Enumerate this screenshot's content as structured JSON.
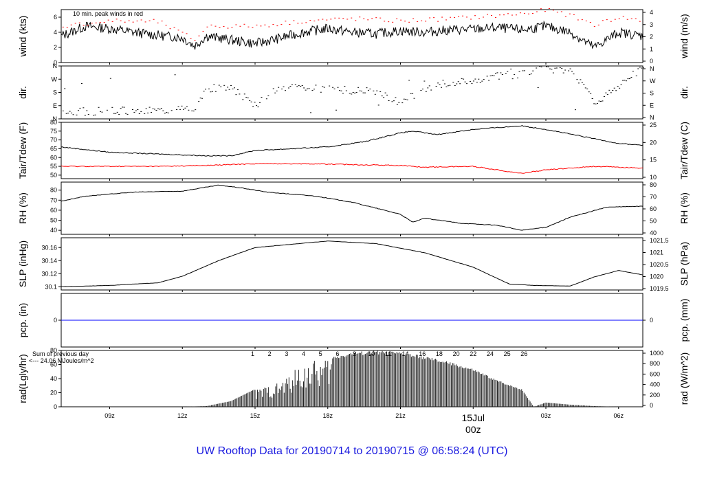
{
  "footer_title": "UW Rooftop Data for 20190714  to  20190715 @ 06:58:24  (UTC)",
  "colors": {
    "axis": "#000000",
    "red": "#ff0000",
    "blue": "#0000ff",
    "purple": "#a020f0",
    "footer": "#1a1adf",
    "date": "#cc0000"
  },
  "x_axis": {
    "ticks": [
      {
        "hour": 9,
        "label": "09z"
      },
      {
        "hour": 12,
        "label": "12z"
      },
      {
        "hour": 15,
        "label": "15z"
      },
      {
        "hour": 18,
        "label": "18z"
      },
      {
        "hour": 21,
        "label": "21z"
      },
      {
        "hour": 24,
        "label": ""
      },
      {
        "hour": 27,
        "label": "03z"
      },
      {
        "hour": 30,
        "label": "06z"
      }
    ],
    "date_label": "15Jul",
    "date_sublabel": "00z",
    "range_hours": [
      7.0,
      31.0
    ]
  },
  "chart_data": [
    {
      "type": "line",
      "ylabel": "wind (kts)",
      "ylabel_right": "wind (m/s)",
      "annotation": "10 min. peak winds in red",
      "ylim": [
        0,
        7
      ],
      "yticks": [
        0,
        2,
        4,
        6
      ],
      "yticks_right": [
        "0",
        "1",
        "2",
        "3",
        "4"
      ],
      "right_scale_factor": 1.944,
      "series": [
        {
          "color": "#000000",
          "x": [
            7.0,
            8.0,
            9.0,
            10.0,
            11.0,
            12.0,
            12.5,
            13.0,
            14.0,
            15.0,
            16.0,
            17.0,
            18.0,
            19.0,
            20.0,
            21.0,
            22.0,
            23.0,
            24.0,
            25.0,
            26.0,
            27.0,
            28.0,
            29.0,
            30.0,
            31.0
          ],
          "y": [
            3.5,
            4.8,
            4.5,
            4.0,
            3.6,
            3.3,
            2.2,
            3.5,
            3.0,
            2.5,
            3.2,
            4.0,
            4.5,
            4.0,
            3.8,
            4.2,
            4.0,
            4.3,
            4.4,
            4.6,
            4.3,
            4.8,
            4.0,
            2.0,
            4.0,
            3.5
          ]
        },
        {
          "color": "#ff0000",
          "x": [
            7.0,
            9.0,
            11.0,
            12.5,
            13.0,
            15.0,
            17.0,
            19.0,
            21.0,
            23.0,
            25.0,
            26.5,
            27.0,
            28.0,
            29.0,
            30.0,
            31.0
          ],
          "y": [
            4.8,
            5.5,
            5.4,
            3.0,
            4.8,
            4.8,
            5.5,
            5.8,
            5.5,
            5.8,
            6.2,
            6.6,
            7.0,
            6.2,
            5.0,
            6.0,
            5.5
          ]
        }
      ]
    },
    {
      "type": "scatter",
      "ylabel": "dir.",
      "ylabel_right": "dir.",
      "ylim": [
        0,
        360
      ],
      "ytick_labels": [
        "N",
        "E",
        "S",
        "W",
        "N"
      ],
      "yticks": [
        0,
        90,
        180,
        270,
        360
      ],
      "series": [
        {
          "color": "#000000",
          "x": [
            7.0,
            9.0,
            11.0,
            12.5,
            13.0,
            14.0,
            15.0,
            16.0,
            18.0,
            20.0,
            21.0,
            22.0,
            23.0,
            24.0,
            25.0,
            26.0,
            27.0,
            28.0,
            29.0,
            31.0
          ],
          "y": [
            45,
            55,
            60,
            75,
            210,
            215,
            95,
            210,
            205,
            185,
            110,
            210,
            250,
            265,
            290,
            305,
            340,
            330,
            110,
            355
          ]
        }
      ]
    },
    {
      "type": "line",
      "ylabel": "Tair/Tdew (F)",
      "ylabel_right": "Tair/Tdew (C)",
      "ylim": [
        48,
        80
      ],
      "yticks": [
        50,
        55,
        60,
        65,
        70,
        75,
        80
      ],
      "yticks_right": [
        "10",
        "15",
        "20",
        "25"
      ],
      "series": [
        {
          "name": "Tair",
          "color": "#000000",
          "x": [
            7.0,
            9.0,
            11.0,
            13.0,
            14.0,
            15.0,
            16.5,
            18.0,
            19.5,
            21.0,
            21.5,
            22.5,
            24.0,
            25.0,
            26.0,
            27.0,
            28.5,
            30.0,
            31.0
          ],
          "y": [
            66,
            63,
            62,
            61,
            61,
            64,
            65,
            66,
            69,
            74,
            75,
            73,
            76,
            77,
            78,
            76,
            72,
            68,
            67
          ]
        },
        {
          "name": "Tdew",
          "color": "#ff0000",
          "x": [
            7.0,
            9.0,
            11.0,
            13.0,
            15.0,
            17.0,
            19.0,
            21.0,
            22.0,
            24.0,
            25.5,
            26.0,
            27.0,
            29.0,
            31.0
          ],
          "y": [
            55,
            55,
            55,
            55.5,
            56.5,
            56.5,
            56,
            55.5,
            54.5,
            55,
            52,
            51,
            53,
            55,
            54
          ]
        }
      ]
    },
    {
      "type": "line",
      "ylabel": "RH (%)",
      "ylabel_right": "RH (%)",
      "ylim": [
        36,
        88
      ],
      "yticks": [
        40,
        50,
        60,
        70,
        80
      ],
      "series": [
        {
          "color": "#000000",
          "x": [
            7.0,
            8.0,
            10.0,
            12.0,
            13.5,
            14.5,
            15.5,
            17.5,
            19.0,
            21.0,
            21.5,
            22.0,
            23.5,
            25.0,
            26.0,
            27.0,
            28.0,
            29.5,
            31.0
          ],
          "y": [
            69,
            74,
            78,
            79,
            85,
            82,
            78,
            74,
            68,
            56,
            48,
            52,
            47,
            45,
            40,
            43,
            53,
            63,
            64
          ]
        }
      ]
    },
    {
      "type": "line",
      "ylabel": "SLP (inHg)",
      "ylabel_right": "SLP (hPa)",
      "ylim": [
        30.095,
        30.175
      ],
      "yticks": [
        30.1,
        30.12,
        30.14,
        30.16
      ],
      "yticks_right": [
        "1019.5",
        "1020",
        "1020.5",
        "1021",
        "1021.5"
      ],
      "series": [
        {
          "color": "#000000",
          "x": [
            7.0,
            9.0,
            11.0,
            12.0,
            13.5,
            15.0,
            16.5,
            18.0,
            20.0,
            22.0,
            24.0,
            25.5,
            26.5,
            28.0,
            29.0,
            30.0,
            31.0
          ],
          "y": [
            30.1,
            30.102,
            30.106,
            30.116,
            30.14,
            30.16,
            30.165,
            30.17,
            30.166,
            30.152,
            30.13,
            30.104,
            30.102,
            30.101,
            30.115,
            30.125,
            30.118
          ]
        }
      ]
    },
    {
      "type": "line",
      "ylabel": "pcp. (in)",
      "ylabel_right": "pcp. (mm)",
      "ylim": [
        -1,
        1
      ],
      "yticks": [
        0
      ],
      "yticks_right": [
        "0"
      ],
      "series": [
        {
          "color": "#0000ff",
          "x": [
            7.0,
            31.0
          ],
          "y": [
            0,
            0
          ]
        }
      ]
    },
    {
      "type": "bar",
      "ylabel": "rad(Lgly/hr)",
      "ylabel_right": "rad (W/m^2)",
      "ylim": [
        0,
        80
      ],
      "yticks": [
        0,
        20,
        40,
        60,
        80
      ],
      "yticks_right": [
        "0",
        "200",
        "400",
        "600",
        "800",
        "1000"
      ],
      "annotation_line1": "Sum of previous day",
      "annotation_line2": "<--- 24.06 MJoules/m^2",
      "hour_labels": [
        "1",
        "2",
        "3",
        "4",
        "5",
        "6",
        "8",
        "10",
        "12",
        "14",
        "16",
        "18",
        "20",
        "22",
        "24",
        "25",
        "26"
      ],
      "series": [
        {
          "color": "#222222",
          "x": [
            12.0,
            13.0,
            14.0,
            15.0,
            16.0,
            17.0,
            18.0,
            19.0,
            20.0,
            21.0,
            22.0,
            23.0,
            24.0,
            25.0,
            26.0,
            26.5,
            27.0,
            28.0,
            29.0,
            30.0
          ],
          "y": [
            0,
            1,
            8,
            25,
            35,
            62,
            70,
            78,
            80,
            78,
            72,
            64,
            54,
            38,
            25,
            0,
            6,
            3,
            1,
            0
          ]
        }
      ]
    }
  ]
}
